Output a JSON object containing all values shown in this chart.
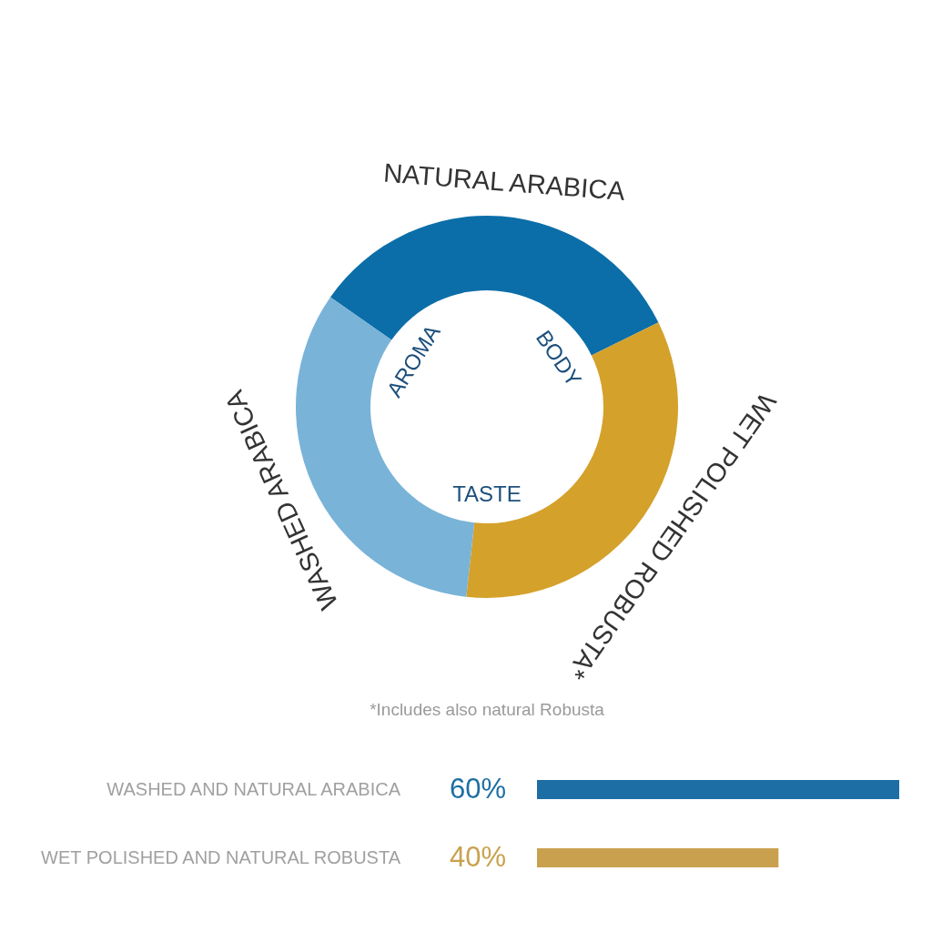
{
  "chart_data": [
    {
      "type": "donut",
      "categories": [
        "NATURAL ARABICA",
        "WET POLISHED ROBUSTA*",
        "WASHED ARABICA"
      ],
      "values": [
        33,
        34,
        33
      ],
      "colors": [
        "#0b6ea8",
        "#d4a12b",
        "#79b3d8"
      ],
      "annotations": [
        "AROMA",
        "BODY",
        "TASTE",
        "*Includes also natural Robusta"
      ]
    },
    {
      "type": "bar",
      "orientation": "horizontal",
      "categories": [
        "WASHED AND NATURAL ARABICA",
        "WET POLISHED AND NATURAL ROBUSTA"
      ],
      "values": [
        60,
        40
      ],
      "colors": [
        "#1d6ea4",
        "#c9a14e"
      ],
      "value_labels": [
        "60%",
        "40%"
      ]
    }
  ]
}
